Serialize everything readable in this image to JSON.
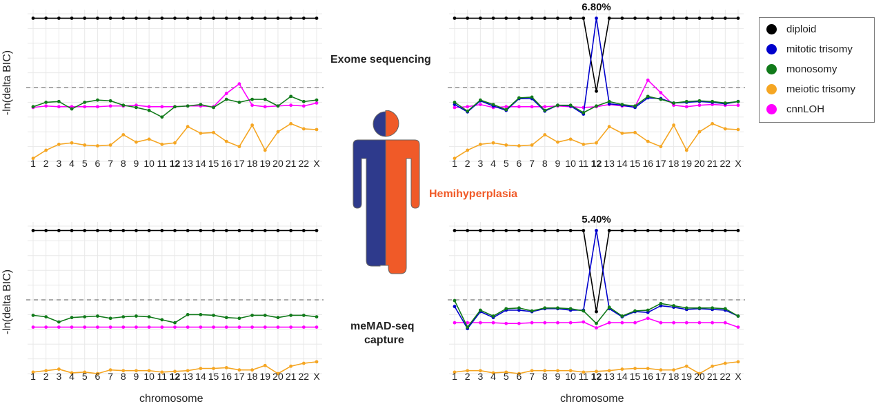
{
  "labels": {
    "exome": "Exome sequencing",
    "memad_line1": "meMAD-seq",
    "memad_line2": "capture",
    "condition": "Hemihyperplasia",
    "ylabel": "-ln(delta BIC)",
    "xlabel": "chromosome"
  },
  "colors": {
    "diploid": "#000000",
    "mitotic_trisomy": "#0000cc",
    "monosomy": "#117a1a",
    "meiotic_trisomy": "#f5a623",
    "cnnLOH": "#ff00ff",
    "condition": "#f05a28",
    "figure_left": "#2e3a8c",
    "figure_right": "#f05a28",
    "threshold": "#777777",
    "grid": "#e8e8e8"
  },
  "legend": [
    {
      "key": "diploid",
      "label": "diploid"
    },
    {
      "key": "mitotic_trisomy",
      "label": "mitotic trisomy"
    },
    {
      "key": "monosomy",
      "label": "monosomy"
    },
    {
      "key": "meiotic_trisomy",
      "label": "meiotic trisomy"
    },
    {
      "key": "cnnLOH",
      "label": "cnnLOH"
    }
  ],
  "chart_data": [
    {
      "type": "line",
      "name": "exome-unaffected",
      "categories": [
        "1",
        "2",
        "3",
        "4",
        "5",
        "6",
        "7",
        "8",
        "9",
        "10",
        "11",
        "12",
        "13",
        "14",
        "15",
        "16",
        "17",
        "18",
        "19",
        "20",
        "21",
        "22",
        "X"
      ],
      "bold_category": "12",
      "threshold": 5,
      "ylim": [
        0,
        10
      ],
      "annotation": "",
      "series": [
        {
          "key": "diploid",
          "values": [
            9.7,
            9.7,
            9.7,
            9.7,
            9.7,
            9.7,
            9.7,
            9.7,
            9.7,
            9.7,
            9.7,
            9.7,
            9.7,
            9.7,
            9.7,
            9.7,
            9.7,
            9.7,
            9.7,
            9.7,
            9.7,
            9.7,
            9.7
          ]
        },
        {
          "key": "cnnLOH",
          "values": [
            3.65,
            3.75,
            3.7,
            3.7,
            3.7,
            3.7,
            3.75,
            3.75,
            3.8,
            3.7,
            3.7,
            3.7,
            3.75,
            3.75,
            3.7,
            4.6,
            5.25,
            3.8,
            3.7,
            3.75,
            3.8,
            3.75,
            3.95
          ]
        },
        {
          "key": "monosomy",
          "values": [
            3.7,
            4.0,
            4.05,
            3.55,
            4.0,
            4.15,
            4.1,
            3.8,
            3.65,
            3.45,
            3.0,
            3.7,
            3.75,
            3.85,
            3.65,
            4.2,
            4.0,
            4.2,
            4.2,
            3.75,
            4.4,
            4.05,
            4.15
          ]
        },
        {
          "key": "meiotic_trisomy",
          "values": [
            0.2,
            0.75,
            1.15,
            1.25,
            1.1,
            1.05,
            1.1,
            1.8,
            1.3,
            1.5,
            1.15,
            1.25,
            2.35,
            1.9,
            1.95,
            1.35,
            1.0,
            2.45,
            0.75,
            2.0,
            2.55,
            2.2,
            2.15
          ]
        }
      ]
    },
    {
      "type": "line",
      "name": "exome-affected",
      "categories": [
        "1",
        "2",
        "3",
        "4",
        "5",
        "6",
        "7",
        "8",
        "9",
        "10",
        "11",
        "12",
        "13",
        "14",
        "15",
        "16",
        "17",
        "18",
        "19",
        "20",
        "21",
        "22",
        "X"
      ],
      "bold_category": "12",
      "threshold": 5,
      "ylim": [
        0,
        10
      ],
      "annotation": "6.80%",
      "series": [
        {
          "key": "diploid",
          "values": [
            9.7,
            9.7,
            9.7,
            9.7,
            9.7,
            9.7,
            9.7,
            9.7,
            9.7,
            9.7,
            9.7,
            4.75,
            9.7,
            9.7,
            9.7,
            9.7,
            9.7,
            9.7,
            9.7,
            9.7,
            9.7,
            9.7,
            9.7
          ]
        },
        {
          "key": "cnnLOH",
          "values": [
            3.65,
            3.7,
            3.85,
            3.65,
            3.7,
            3.7,
            3.7,
            3.7,
            3.75,
            3.7,
            3.65,
            3.7,
            3.85,
            3.75,
            3.7,
            5.5,
            4.65,
            3.8,
            3.7,
            3.8,
            3.85,
            3.8,
            3.8
          ]
        },
        {
          "key": "mitotic_trisomy",
          "values": [
            3.85,
            3.35,
            4.1,
            3.75,
            3.45,
            4.25,
            4.25,
            3.4,
            3.8,
            3.75,
            3.2,
            9.7,
            3.9,
            3.8,
            3.65,
            4.3,
            4.25,
            3.95,
            4.0,
            4.05,
            4.0,
            3.9,
            4.05
          ]
        },
        {
          "key": "monosomy",
          "values": [
            4.0,
            3.4,
            4.15,
            3.85,
            3.5,
            4.3,
            4.35,
            3.45,
            3.8,
            3.8,
            3.3,
            3.75,
            4.05,
            3.85,
            3.75,
            4.4,
            4.2,
            3.95,
            4.05,
            4.1,
            4.05,
            3.95,
            4.05
          ]
        },
        {
          "key": "meiotic_trisomy",
          "values": [
            0.2,
            0.75,
            1.15,
            1.25,
            1.1,
            1.05,
            1.1,
            1.8,
            1.3,
            1.5,
            1.15,
            1.25,
            2.35,
            1.9,
            1.95,
            1.35,
            1.0,
            2.45,
            0.75,
            2.0,
            2.55,
            2.2,
            2.15
          ]
        }
      ]
    },
    {
      "type": "line",
      "name": "memad-unaffected",
      "categories": [
        "1",
        "2",
        "3",
        "4",
        "5",
        "6",
        "7",
        "8",
        "9",
        "10",
        "11",
        "12",
        "13",
        "14",
        "15",
        "16",
        "17",
        "18",
        "19",
        "20",
        "21",
        "22",
        "X"
      ],
      "bold_category": "12",
      "threshold": 5,
      "ylim": [
        0,
        10
      ],
      "annotation": "",
      "series": [
        {
          "key": "diploid",
          "values": [
            9.7,
            9.7,
            9.7,
            9.7,
            9.7,
            9.7,
            9.7,
            9.7,
            9.7,
            9.7,
            9.7,
            9.7,
            9.7,
            9.7,
            9.7,
            9.7,
            9.7,
            9.7,
            9.7,
            9.7,
            9.7,
            9.7,
            9.7
          ]
        },
        {
          "key": "cnnLOH",
          "values": [
            3.15,
            3.15,
            3.15,
            3.15,
            3.15,
            3.15,
            3.15,
            3.15,
            3.15,
            3.15,
            3.15,
            3.15,
            3.15,
            3.15,
            3.15,
            3.15,
            3.15,
            3.15,
            3.15,
            3.15,
            3.15,
            3.15,
            3.15
          ]
        },
        {
          "key": "monosomy",
          "values": [
            3.95,
            3.85,
            3.5,
            3.8,
            3.85,
            3.9,
            3.75,
            3.85,
            3.9,
            3.85,
            3.65,
            3.45,
            4.0,
            4.0,
            3.95,
            3.8,
            3.75,
            3.95,
            3.95,
            3.8,
            3.95,
            3.95,
            3.85
          ]
        },
        {
          "key": "meiotic_trisomy",
          "values": [
            0.1,
            0.2,
            0.3,
            0.05,
            0.1,
            0.0,
            0.25,
            0.2,
            0.2,
            0.2,
            0.1,
            0.15,
            0.2,
            0.35,
            0.35,
            0.4,
            0.25,
            0.25,
            0.55,
            0.0,
            0.5,
            0.7,
            0.8
          ]
        }
      ]
    },
    {
      "type": "line",
      "name": "memad-affected",
      "categories": [
        "1",
        "2",
        "3",
        "4",
        "5",
        "6",
        "7",
        "8",
        "9",
        "10",
        "11",
        "12",
        "13",
        "14",
        "15",
        "16",
        "17",
        "18",
        "19",
        "20",
        "21",
        "22",
        "X"
      ],
      "bold_category": "12",
      "threshold": 5,
      "ylim": [
        0,
        10
      ],
      "annotation": "5.40%",
      "series": [
        {
          "key": "diploid",
          "values": [
            9.7,
            9.7,
            9.7,
            9.7,
            9.7,
            9.7,
            9.7,
            9.7,
            9.7,
            9.7,
            9.7,
            4.2,
            9.7,
            9.7,
            9.7,
            9.7,
            9.7,
            9.7,
            9.7,
            9.7,
            9.7,
            9.7,
            9.7
          ]
        },
        {
          "key": "cnnLOH",
          "values": [
            3.45,
            3.45,
            3.45,
            3.45,
            3.4,
            3.4,
            3.45,
            3.45,
            3.45,
            3.45,
            3.5,
            3.1,
            3.45,
            3.45,
            3.45,
            3.75,
            3.45,
            3.45,
            3.45,
            3.45,
            3.45,
            3.45,
            3.15
          ]
        },
        {
          "key": "mitotic_trisomy",
          "values": [
            4.55,
            3.05,
            4.2,
            3.8,
            4.3,
            4.3,
            4.2,
            4.4,
            4.4,
            4.3,
            4.3,
            9.7,
            4.4,
            3.85,
            4.2,
            4.15,
            4.6,
            4.5,
            4.35,
            4.4,
            4.35,
            4.3,
            3.9
          ]
        },
        {
          "key": "monosomy",
          "values": [
            4.95,
            3.15,
            4.3,
            3.9,
            4.4,
            4.45,
            4.25,
            4.45,
            4.45,
            4.4,
            4.25,
            3.4,
            4.5,
            3.9,
            4.25,
            4.3,
            4.75,
            4.6,
            4.45,
            4.45,
            4.45,
            4.4,
            3.9
          ]
        },
        {
          "key": "meiotic_trisomy",
          "values": [
            0.1,
            0.2,
            0.2,
            0.05,
            0.1,
            0.0,
            0.2,
            0.2,
            0.2,
            0.2,
            0.1,
            0.15,
            0.2,
            0.3,
            0.35,
            0.35,
            0.25,
            0.25,
            0.5,
            0.0,
            0.5,
            0.7,
            0.8
          ]
        }
      ]
    }
  ]
}
